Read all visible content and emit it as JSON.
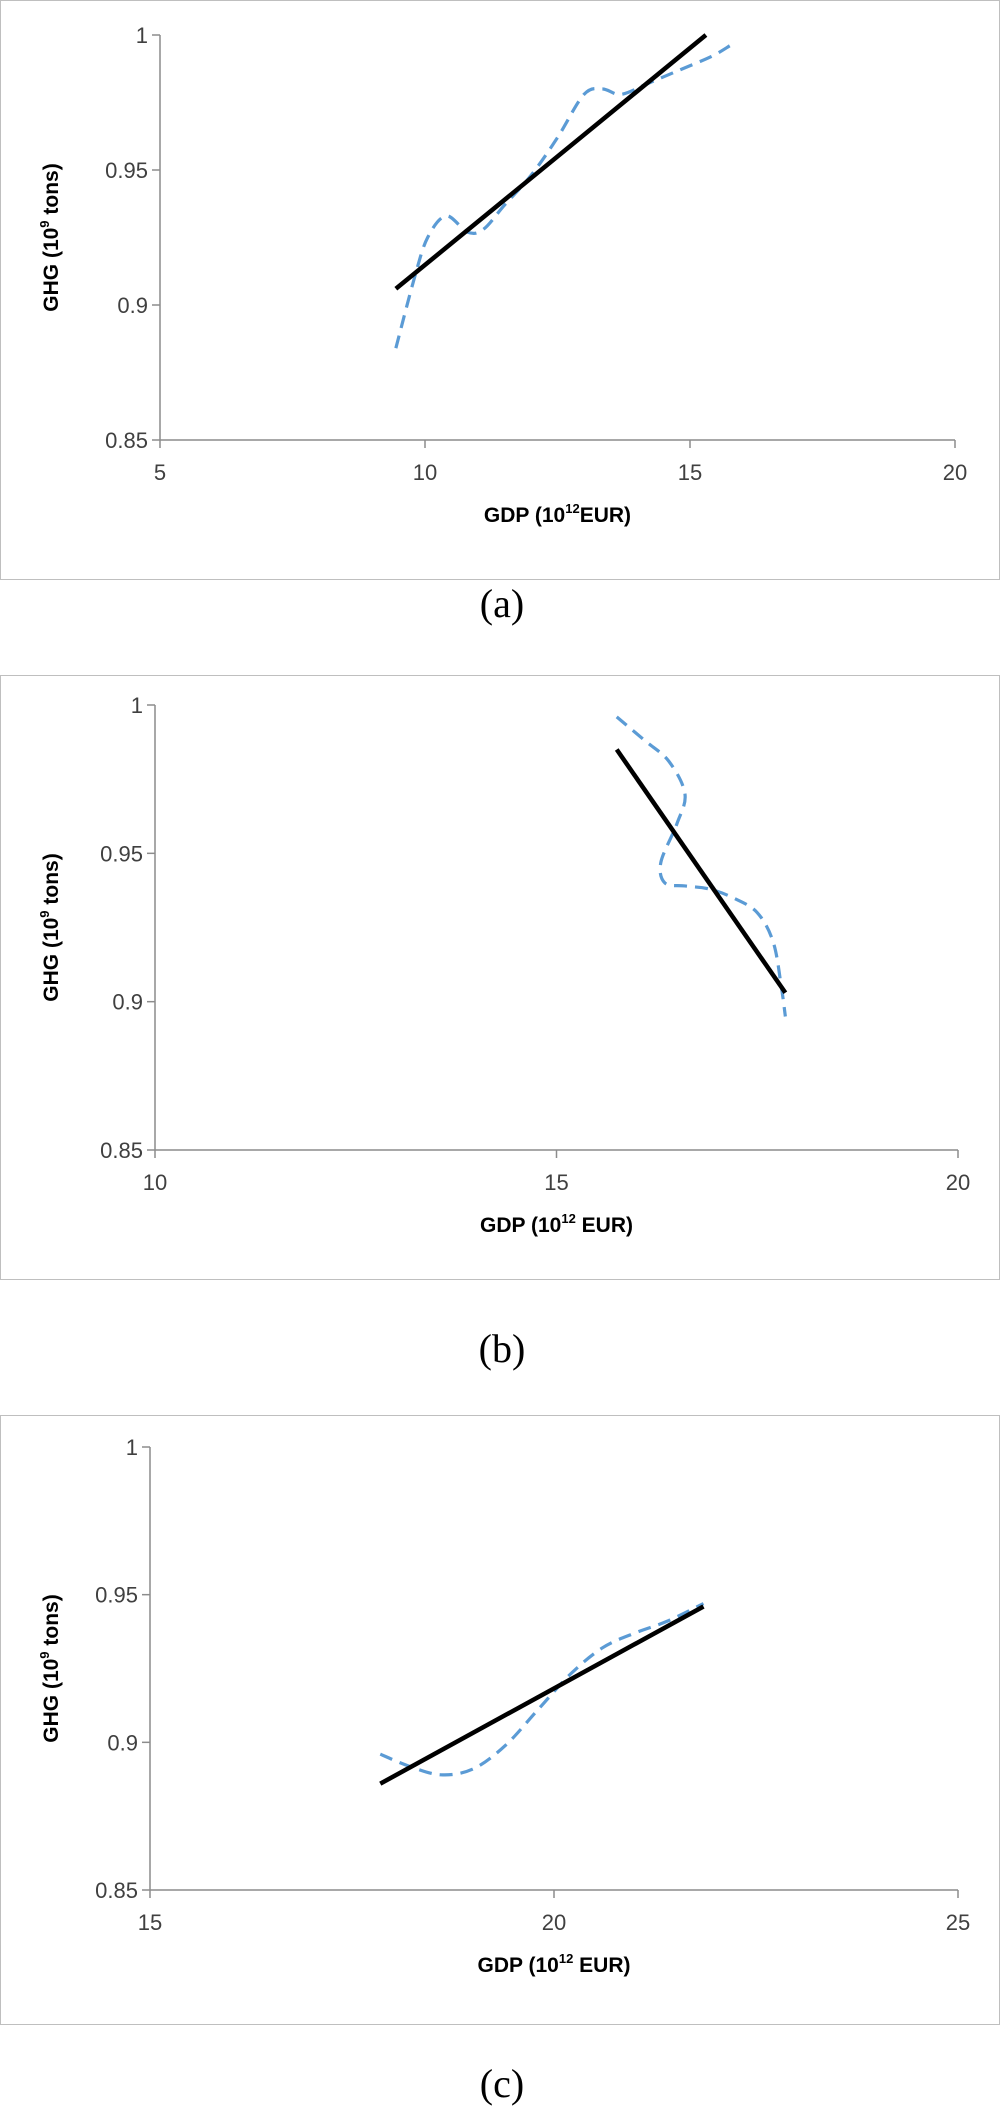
{
  "chart_data": [
    {
      "type": "line",
      "caption": "(a)",
      "xlabel_main": "GDP (10",
      "xlabel_sup": "12",
      "xlabel_tail": "EUR)",
      "ylabel_main": "GHG (10",
      "ylabel_sup": "9",
      "ylabel_tail": " tons)",
      "xlim": [
        5,
        20
      ],
      "ylim": [
        0.85,
        1
      ],
      "xticks": [
        "5",
        "10",
        "15",
        "20"
      ],
      "yticks": [
        "0.85",
        "0.9",
        "0.95",
        "1"
      ],
      "series": [
        {
          "style": "dashed",
          "color": "#5b9bd5",
          "points": [
            [
              9.45,
              0.884
            ],
            [
              9.8,
              0.91
            ],
            [
              10.05,
              0.925
            ],
            [
              10.4,
              0.933
            ],
            [
              10.8,
              0.927
            ],
            [
              11.1,
              0.928
            ],
            [
              11.5,
              0.937
            ],
            [
              12.0,
              0.948
            ],
            [
              12.5,
              0.962
            ],
            [
              13.0,
              0.978
            ],
            [
              13.35,
              0.98
            ],
            [
              13.7,
              0.978
            ],
            [
              14.2,
              0.982
            ],
            [
              14.8,
              0.987
            ],
            [
              15.4,
              0.992
            ],
            [
              15.75,
              0.996
            ]
          ]
        },
        {
          "style": "solid",
          "color": "#000000",
          "points": [
            [
              9.45,
              0.906
            ],
            [
              15.3,
              1.0
            ]
          ]
        }
      ]
    },
    {
      "type": "line",
      "caption": "(b)",
      "xlabel_main": "GDP (10",
      "xlabel_sup": "12",
      "xlabel_tail": " EUR)",
      "ylabel_main": "GHG (10",
      "ylabel_sup": "9",
      "ylabel_tail": " tons)",
      "xlim": [
        10,
        20
      ],
      "ylim": [
        0.85,
        1
      ],
      "xticks": [
        "10",
        "15",
        "20"
      ],
      "yticks": [
        "0.85",
        "0.9",
        "0.95",
        "1"
      ],
      "series": [
        {
          "style": "dashed",
          "color": "#5b9bd5",
          "points": [
            [
              15.75,
              0.996
            ],
            [
              16.1,
              0.988
            ],
            [
              16.4,
              0.981
            ],
            [
              16.6,
              0.97
            ],
            [
              16.5,
              0.96
            ],
            [
              16.3,
              0.947
            ],
            [
              16.35,
              0.94
            ],
            [
              16.6,
              0.939
            ],
            [
              16.9,
              0.938
            ],
            [
              17.2,
              0.935
            ],
            [
              17.5,
              0.93
            ],
            [
              17.7,
              0.92
            ],
            [
              17.8,
              0.905
            ],
            [
              17.85,
              0.895
            ]
          ]
        },
        {
          "style": "solid",
          "color": "#000000",
          "points": [
            [
              15.75,
              0.985
            ],
            [
              17.85,
              0.903
            ]
          ]
        }
      ]
    },
    {
      "type": "line",
      "caption": "(c)",
      "xlabel_main": "GDP (10",
      "xlabel_sup": "12",
      "xlabel_tail": " EUR)",
      "ylabel_main": "GHG (10",
      "ylabel_sup": "9",
      "ylabel_tail": " tons)",
      "xlim": [
        15,
        25
      ],
      "ylim": [
        0.85,
        1
      ],
      "xticks": [
        "15",
        "20",
        "25"
      ],
      "yticks": [
        "0.85",
        "0.9",
        "0.95",
        "1"
      ],
      "series": [
        {
          "style": "dashed",
          "color": "#5b9bd5",
          "points": [
            [
              17.85,
              0.896
            ],
            [
              18.2,
              0.892
            ],
            [
              18.6,
              0.889
            ],
            [
              19.0,
              0.891
            ],
            [
              19.4,
              0.899
            ],
            [
              19.8,
              0.911
            ],
            [
              20.2,
              0.923
            ],
            [
              20.6,
              0.932
            ],
            [
              21.0,
              0.937
            ],
            [
              21.4,
              0.941
            ],
            [
              21.85,
              0.947
            ]
          ]
        },
        {
          "style": "solid",
          "color": "#000000",
          "points": [
            [
              17.85,
              0.886
            ],
            [
              21.85,
              0.946
            ]
          ]
        }
      ]
    }
  ]
}
